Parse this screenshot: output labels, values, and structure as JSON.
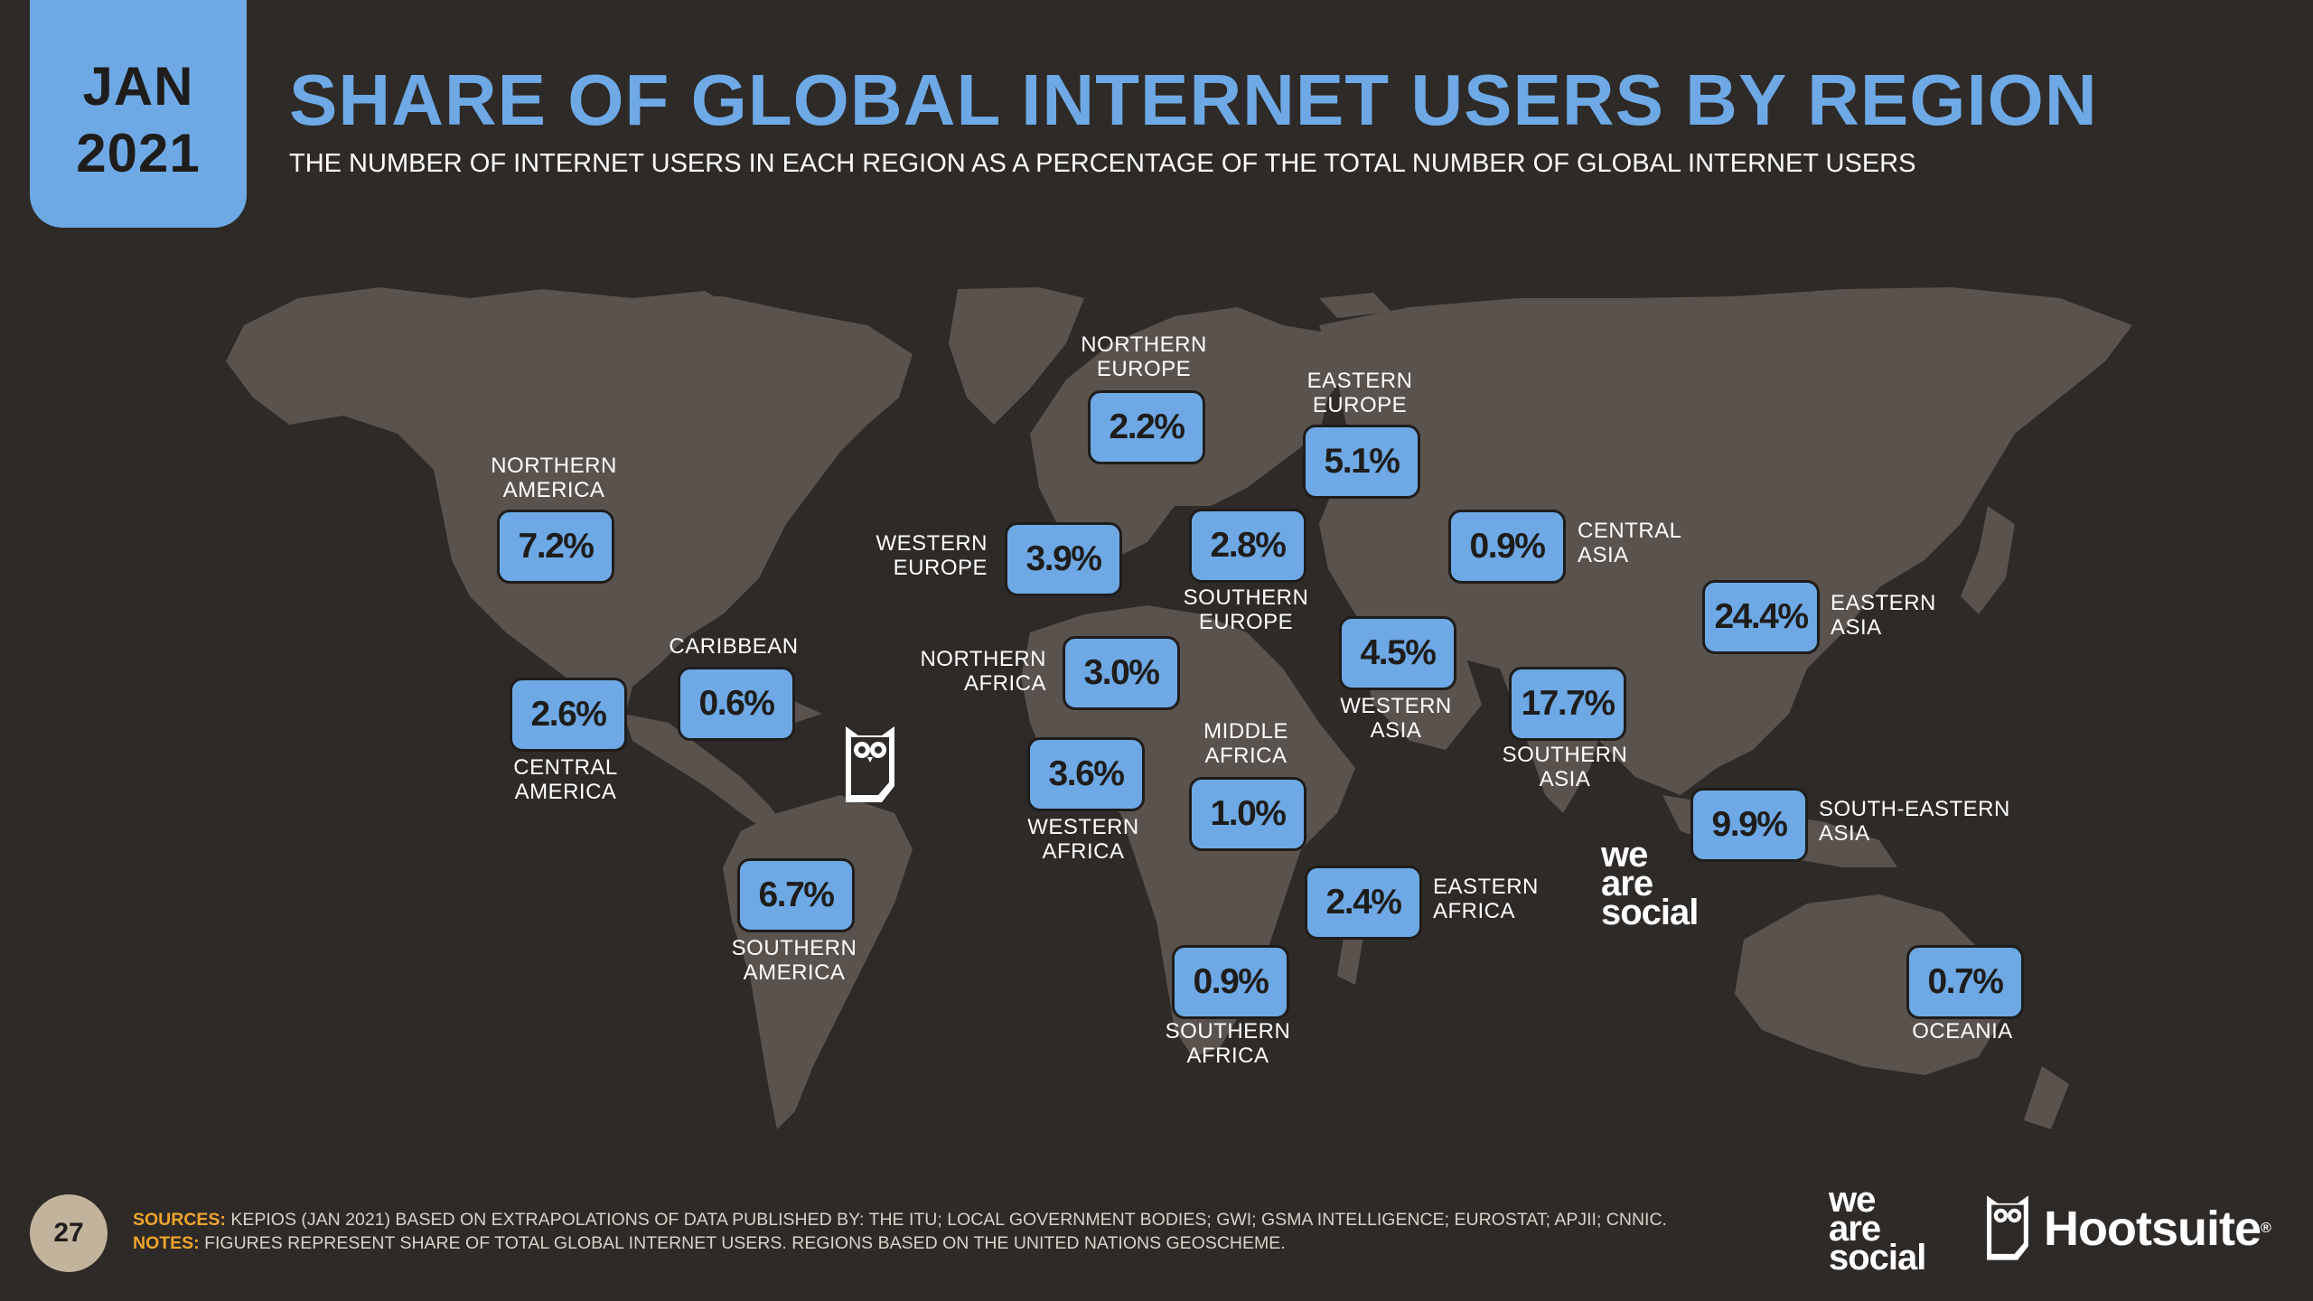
{
  "header": {
    "date_month": "JAN",
    "date_year": "2021",
    "title": "SHARE OF GLOBAL INTERNET USERS BY REGION",
    "subtitle": "THE NUMBER OF INTERNET USERS IN EACH REGION AS A PERCENTAGE OF THE TOTAL NUMBER OF GLOBAL INTERNET USERS"
  },
  "chart_data": {
    "type": "map",
    "unit": "%",
    "regions": [
      {
        "name": "NORTHERN AMERICA",
        "value": 7.2,
        "display": "7.2%",
        "label_lines": [
          "NORTHERN",
          "AMERICA"
        ]
      },
      {
        "name": "CENTRAL AMERICA",
        "value": 2.6,
        "display": "2.6%",
        "label_lines": [
          "CENTRAL",
          "AMERICA"
        ]
      },
      {
        "name": "CARIBBEAN",
        "value": 0.6,
        "display": "0.6%",
        "label_lines": [
          "CARIBBEAN"
        ]
      },
      {
        "name": "SOUTHERN AMERICA",
        "value": 6.7,
        "display": "6.7%",
        "label_lines": [
          "SOUTHERN",
          "AMERICA"
        ]
      },
      {
        "name": "NORTHERN EUROPE",
        "value": 2.2,
        "display": "2.2%",
        "label_lines": [
          "NORTHERN",
          "EUROPE"
        ]
      },
      {
        "name": "WESTERN EUROPE",
        "value": 3.9,
        "display": "3.9%",
        "label_lines": [
          "WESTERN",
          "EUROPE"
        ]
      },
      {
        "name": "SOUTHERN EUROPE",
        "value": 2.8,
        "display": "2.8%",
        "label_lines": [
          "SOUTHERN",
          "EUROPE"
        ]
      },
      {
        "name": "EASTERN EUROPE",
        "value": 5.1,
        "display": "5.1%",
        "label_lines": [
          "EASTERN",
          "EUROPE"
        ]
      },
      {
        "name": "NORTHERN AFRICA",
        "value": 3.0,
        "display": "3.0%",
        "label_lines": [
          "NORTHERN",
          "AFRICA"
        ]
      },
      {
        "name": "WESTERN AFRICA",
        "value": 3.6,
        "display": "3.6%",
        "label_lines": [
          "WESTERN",
          "AFRICA"
        ]
      },
      {
        "name": "MIDDLE AFRICA",
        "value": 1.0,
        "display": "1.0%",
        "label_lines": [
          "MIDDLE",
          "AFRICA"
        ]
      },
      {
        "name": "EASTERN AFRICA",
        "value": 2.4,
        "display": "2.4%",
        "label_lines": [
          "EASTERN",
          "AFRICA"
        ]
      },
      {
        "name": "SOUTHERN AFRICA",
        "value": 0.9,
        "display": "0.9%",
        "label_lines": [
          "SOUTHERN",
          "AFRICA"
        ]
      },
      {
        "name": "WESTERN ASIA",
        "value": 4.5,
        "display": "4.5%",
        "label_lines": [
          "WESTERN",
          "ASIA"
        ]
      },
      {
        "name": "CENTRAL ASIA",
        "value": 0.9,
        "display": "0.9%",
        "label_lines": [
          "CENTRAL",
          "ASIA"
        ]
      },
      {
        "name": "SOUTHERN ASIA",
        "value": 17.7,
        "display": "17.7%",
        "label_lines": [
          "SOUTHERN",
          "ASIA"
        ]
      },
      {
        "name": "EASTERN ASIA",
        "value": 24.4,
        "display": "24.4%",
        "label_lines": [
          "EASTERN",
          "ASIA"
        ]
      },
      {
        "name": "SOUTH-EASTERN ASIA",
        "value": 9.9,
        "display": "9.9%",
        "label_lines": [
          "SOUTH-EASTERN",
          "ASIA"
        ]
      },
      {
        "name": "OCEANIA",
        "value": 0.7,
        "display": "0.7%",
        "label_lines": [
          "OCEANIA"
        ]
      }
    ]
  },
  "footer": {
    "page_number": "27",
    "sources_label": "SOURCES:",
    "sources_text": "KEPIOS (JAN 2021) BASED ON EXTRAPOLATIONS OF DATA PUBLISHED BY: THE ITU; LOCAL GOVERNMENT BODIES; GWI; GSMA INTELLIGENCE; EUROSTAT; APJII; CNNIC.",
    "notes_label": "NOTES:",
    "notes_text": "FIGURES REPRESENT SHARE OF TOTAL GLOBAL INTERNET USERS. REGIONS BASED ON THE UNITED NATIONS GEOSCHEME.",
    "brand_we": [
      "we",
      "are",
      "social"
    ],
    "brand_hootsuite": "Hootsuite",
    "brand_hootsuite_mark": "®"
  },
  "colors": {
    "background": "#2e2a27",
    "land": "#5a524d",
    "accent": "#6ea9e5",
    "box_border": "#1f1d1b",
    "label_text": "#ffffff",
    "notes_label": "#f0a52c",
    "page_badge": "#c2b39c"
  },
  "icons": [
    "owl-icon",
    "hootsuite-owl-icon"
  ]
}
